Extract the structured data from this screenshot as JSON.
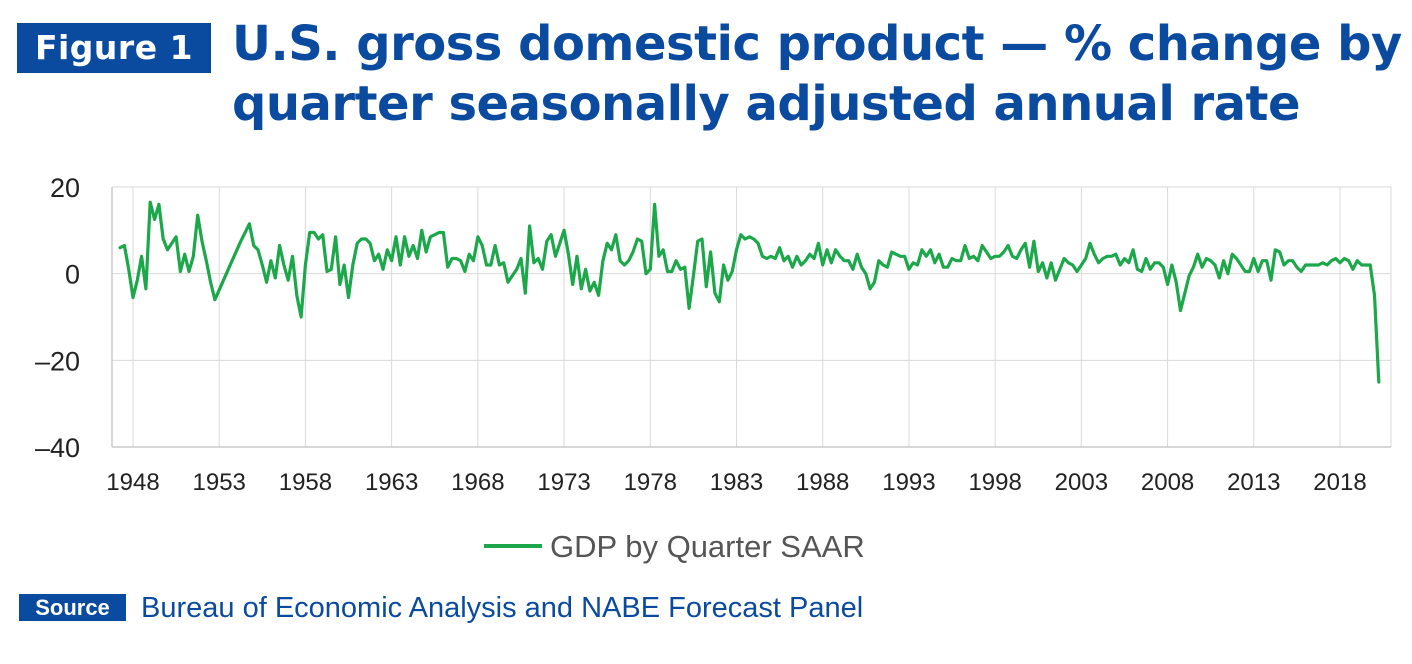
{
  "header": {
    "figure_label": "Figure 1",
    "title": "U.S. gross domestic product — % change by quarter seasonally adjusted annual rate"
  },
  "source": {
    "label": "Source",
    "text": "Bureau of Economic Analysis and NABE Forecast Panel"
  },
  "colors": {
    "brand_blue": "#0a4a9f",
    "series_green": "#1ca84a",
    "grid": "#d9d9d9"
  },
  "chart_data": {
    "type": "line",
    "title": "U.S. gross domestic product — % change by quarter seasonally adjusted annual rate",
    "xlabel": "",
    "ylabel": "",
    "ylim": [
      -40,
      20
    ],
    "yticks": [
      20,
      0,
      -20,
      -40
    ],
    "ytick_labels": [
      "20",
      "0",
      "–20",
      "–40"
    ],
    "xlim": [
      1947.25,
      2020.5
    ],
    "xticks": [
      1948,
      1953,
      1958,
      1963,
      1968,
      1973,
      1978,
      1983,
      1988,
      1993,
      1998,
      2003,
      2008,
      2013,
      2018
    ],
    "grid": {
      "horizontal": true,
      "vertical": true
    },
    "legend": {
      "position": "bottom"
    },
    "series": [
      {
        "name": "GDP by Quarter SAAR",
        "color": "#1ca84a",
        "points": [
          [
            1947.25,
            6.0
          ],
          [
            1947.5,
            6.5
          ],
          [
            1947.75,
            1.0
          ],
          [
            1948.0,
            -5.5
          ],
          [
            1948.25,
            -1.5
          ],
          [
            1948.5,
            4.0
          ],
          [
            1948.75,
            -3.5
          ],
          [
            1949.0,
            16.5
          ],
          [
            1949.25,
            12.5
          ],
          [
            1949.5,
            16.0
          ],
          [
            1949.75,
            8.0
          ],
          [
            1950.0,
            5.5
          ],
          [
            1950.25,
            7.0
          ],
          [
            1950.5,
            8.5
          ],
          [
            1950.75,
            0.5
          ],
          [
            1951.0,
            4.5
          ],
          [
            1951.25,
            0.5
          ],
          [
            1951.5,
            4.0
          ],
          [
            1951.75,
            13.5
          ],
          [
            1952.0,
            7.5
          ],
          [
            1952.25,
            3.0
          ],
          [
            1952.5,
            -2.0
          ],
          [
            1952.75,
            -6.0
          ],
          [
            1953.25,
            -1.5
          ],
          [
            1953.75,
            3.0
          ],
          [
            1954.25,
            7.5
          ],
          [
            1954.75,
            11.5
          ],
          [
            1955.0,
            6.5
          ],
          [
            1955.25,
            5.5
          ],
          [
            1955.5,
            2.0
          ],
          [
            1955.75,
            -2.0
          ],
          [
            1956.0,
            3.0
          ],
          [
            1956.25,
            -1.0
          ],
          [
            1956.5,
            6.5
          ],
          [
            1956.75,
            2.0
          ],
          [
            1957.0,
            -1.5
          ],
          [
            1957.25,
            4.0
          ],
          [
            1957.5,
            -5.0
          ],
          [
            1957.75,
            -10.0
          ],
          [
            1958.0,
            2.0
          ],
          [
            1958.25,
            9.5
          ],
          [
            1958.5,
            9.5
          ],
          [
            1958.75,
            8.0
          ],
          [
            1959.0,
            9.0
          ],
          [
            1959.25,
            0.5
          ],
          [
            1959.5,
            1.0
          ],
          [
            1959.75,
            8.5
          ],
          [
            1960.0,
            -2.5
          ],
          [
            1960.25,
            2.0
          ],
          [
            1960.5,
            -5.5
          ],
          [
            1960.75,
            2.0
          ],
          [
            1961.0,
            7.0
          ],
          [
            1961.25,
            8.0
          ],
          [
            1961.5,
            8.0
          ],
          [
            1961.75,
            7.0
          ],
          [
            1962.0,
            3.0
          ],
          [
            1962.25,
            4.5
          ],
          [
            1962.5,
            1.0
          ],
          [
            1962.75,
            5.5
          ],
          [
            1963.0,
            3.0
          ],
          [
            1963.25,
            8.5
          ],
          [
            1963.5,
            2.0
          ],
          [
            1963.75,
            8.5
          ],
          [
            1964.0,
            4.0
          ],
          [
            1964.25,
            6.5
          ],
          [
            1964.5,
            3.5
          ],
          [
            1964.75,
            10.0
          ],
          [
            1965.0,
            5.0
          ],
          [
            1965.25,
            8.5
          ],
          [
            1965.5,
            9.0
          ],
          [
            1965.75,
            9.5
          ],
          [
            1966.0,
            9.5
          ],
          [
            1966.25,
            1.5
          ],
          [
            1966.5,
            3.5
          ],
          [
            1966.75,
            3.5
          ],
          [
            1967.0,
            3.0
          ],
          [
            1967.25,
            0.5
          ],
          [
            1967.5,
            4.5
          ],
          [
            1967.75,
            3.0
          ],
          [
            1968.0,
            8.5
          ],
          [
            1968.25,
            6.5
          ],
          [
            1968.5,
            2.0
          ],
          [
            1968.75,
            2.0
          ],
          [
            1969.0,
            6.5
          ],
          [
            1969.25,
            2.0
          ],
          [
            1969.5,
            2.5
          ],
          [
            1969.75,
            -2.0
          ],
          [
            1970.0,
            -0.5
          ],
          [
            1970.25,
            1.0
          ],
          [
            1970.5,
            3.5
          ],
          [
            1970.75,
            -4.5
          ],
          [
            1971.0,
            11.0
          ],
          [
            1971.25,
            2.5
          ],
          [
            1971.5,
            3.5
          ],
          [
            1971.75,
            1.0
          ],
          [
            1972.0,
            7.5
          ],
          [
            1972.25,
            9.0
          ],
          [
            1972.5,
            4.0
          ],
          [
            1972.75,
            7.0
          ],
          [
            1973.0,
            10.0
          ],
          [
            1973.25,
            4.5
          ],
          [
            1973.5,
            -2.5
          ],
          [
            1973.75,
            4.0
          ],
          [
            1974.0,
            -3.5
          ],
          [
            1974.25,
            1.0
          ],
          [
            1974.5,
            -4.0
          ],
          [
            1974.75,
            -2.0
          ],
          [
            1975.0,
            -5.0
          ],
          [
            1975.25,
            3.0
          ],
          [
            1975.5,
            7.0
          ],
          [
            1975.75,
            5.5
          ],
          [
            1976.0,
            9.0
          ],
          [
            1976.25,
            3.0
          ],
          [
            1976.5,
            2.0
          ],
          [
            1976.75,
            3.0
          ],
          [
            1977.0,
            5.0
          ],
          [
            1977.25,
            8.0
          ],
          [
            1977.5,
            7.5
          ],
          [
            1977.75,
            0.0
          ],
          [
            1978.0,
            1.0
          ],
          [
            1978.25,
            16.0
          ],
          [
            1978.5,
            4.0
          ],
          [
            1978.75,
            5.5
          ],
          [
            1979.0,
            0.5
          ],
          [
            1979.25,
            0.5
          ],
          [
            1979.5,
            3.0
          ],
          [
            1979.75,
            1.0
          ],
          [
            1980.0,
            1.5
          ],
          [
            1980.25,
            -8.0
          ],
          [
            1980.5,
            -0.5
          ],
          [
            1980.75,
            7.5
          ],
          [
            1981.0,
            8.0
          ],
          [
            1981.25,
            -3.0
          ],
          [
            1981.5,
            5.0
          ],
          [
            1981.75,
            -4.5
          ],
          [
            1982.0,
            -6.5
          ],
          [
            1982.25,
            2.0
          ],
          [
            1982.5,
            -1.5
          ],
          [
            1982.75,
            0.5
          ],
          [
            1983.0,
            5.5
          ],
          [
            1983.25,
            9.0
          ],
          [
            1983.5,
            8.0
          ],
          [
            1983.75,
            8.5
          ],
          [
            1984.0,
            8.0
          ],
          [
            1984.25,
            7.0
          ],
          [
            1984.5,
            4.0
          ],
          [
            1984.75,
            3.5
          ],
          [
            1985.0,
            4.0
          ],
          [
            1985.25,
            3.5
          ],
          [
            1985.5,
            6.0
          ],
          [
            1985.75,
            3.0
          ],
          [
            1986.0,
            4.0
          ],
          [
            1986.25,
            1.5
          ],
          [
            1986.5,
            4.0
          ],
          [
            1986.75,
            2.0
          ],
          [
            1987.0,
            3.0
          ],
          [
            1987.25,
            4.5
          ],
          [
            1987.5,
            3.5
          ],
          [
            1987.75,
            7.0
          ],
          [
            1988.0,
            2.0
          ],
          [
            1988.25,
            5.5
          ],
          [
            1988.5,
            2.5
          ],
          [
            1988.75,
            5.5
          ],
          [
            1989.0,
            4.0
          ],
          [
            1989.25,
            3.0
          ],
          [
            1989.5,
            3.0
          ],
          [
            1989.75,
            1.0
          ],
          [
            1990.0,
            4.5
          ],
          [
            1990.25,
            1.5
          ],
          [
            1990.5,
            0.0
          ],
          [
            1990.75,
            -3.5
          ],
          [
            1991.0,
            -2.0
          ],
          [
            1991.25,
            3.0
          ],
          [
            1991.5,
            2.0
          ],
          [
            1991.75,
            1.5
          ],
          [
            1992.0,
            5.0
          ],
          [
            1992.25,
            4.5
          ],
          [
            1992.5,
            4.0
          ],
          [
            1992.75,
            4.0
          ],
          [
            1993.0,
            1.0
          ],
          [
            1993.25,
            2.5
          ],
          [
            1993.5,
            2.0
          ],
          [
            1993.75,
            5.5
          ],
          [
            1994.0,
            4.0
          ],
          [
            1994.25,
            5.5
          ],
          [
            1994.5,
            2.5
          ],
          [
            1994.75,
            4.5
          ],
          [
            1995.0,
            1.5
          ],
          [
            1995.25,
            1.5
          ],
          [
            1995.5,
            3.5
          ],
          [
            1995.75,
            3.0
          ],
          [
            1996.0,
            3.0
          ],
          [
            1996.25,
            6.5
          ],
          [
            1996.5,
            3.5
          ],
          [
            1996.75,
            4.0
          ],
          [
            1997.0,
            3.0
          ],
          [
            1997.25,
            6.5
          ],
          [
            1997.5,
            5.0
          ],
          [
            1997.75,
            3.5
          ],
          [
            1998.0,
            4.0
          ],
          [
            1998.25,
            4.0
          ],
          [
            1998.5,
            5.0
          ],
          [
            1998.75,
            6.5
          ],
          [
            1999.0,
            4.0
          ],
          [
            1999.25,
            3.5
          ],
          [
            1999.5,
            5.5
          ],
          [
            1999.75,
            7.0
          ],
          [
            2000.0,
            1.5
          ],
          [
            2000.25,
            7.5
          ],
          [
            2000.5,
            0.5
          ],
          [
            2000.75,
            2.5
          ],
          [
            2001.0,
            -1.0
          ],
          [
            2001.25,
            2.5
          ],
          [
            2001.5,
            -1.5
          ],
          [
            2001.75,
            1.0
          ],
          [
            2002.0,
            3.5
          ],
          [
            2002.25,
            2.5
          ],
          [
            2002.5,
            2.0
          ],
          [
            2002.75,
            0.5
          ],
          [
            2003.0,
            2.0
          ],
          [
            2003.25,
            3.5
          ],
          [
            2003.5,
            7.0
          ],
          [
            2003.75,
            4.5
          ],
          [
            2004.0,
            2.5
          ],
          [
            2004.25,
            3.5
          ],
          [
            2004.5,
            4.0
          ],
          [
            2004.75,
            4.0
          ],
          [
            2005.0,
            4.5
          ],
          [
            2005.25,
            2.0
          ],
          [
            2005.5,
            3.5
          ],
          [
            2005.75,
            2.5
          ],
          [
            2006.0,
            5.5
          ],
          [
            2006.25,
            1.0
          ],
          [
            2006.5,
            0.5
          ],
          [
            2006.75,
            3.5
          ],
          [
            2007.0,
            1.0
          ],
          [
            2007.25,
            2.5
          ],
          [
            2007.5,
            2.5
          ],
          [
            2007.75,
            1.5
          ],
          [
            2008.0,
            -2.5
          ],
          [
            2008.25,
            2.0
          ],
          [
            2008.5,
            -2.0
          ],
          [
            2008.75,
            -8.5
          ],
          [
            2009.0,
            -4.5
          ],
          [
            2009.25,
            -0.5
          ],
          [
            2009.5,
            1.5
          ],
          [
            2009.75,
            4.5
          ],
          [
            2010.0,
            1.5
          ],
          [
            2010.25,
            3.5
          ],
          [
            2010.5,
            3.0
          ],
          [
            2010.75,
            2.0
          ],
          [
            2011.0,
            -1.0
          ],
          [
            2011.25,
            3.0
          ],
          [
            2011.5,
            0.0
          ],
          [
            2011.75,
            4.5
          ],
          [
            2012.0,
            3.5
          ],
          [
            2012.25,
            2.0
          ],
          [
            2012.5,
            0.5
          ],
          [
            2012.75,
            0.5
          ],
          [
            2013.0,
            3.5
          ],
          [
            2013.25,
            0.5
          ],
          [
            2013.5,
            3.0
          ],
          [
            2013.75,
            3.0
          ],
          [
            2014.0,
            -1.5
          ],
          [
            2014.25,
            5.5
          ],
          [
            2014.5,
            5.0
          ],
          [
            2014.75,
            2.0
          ],
          [
            2015.0,
            3.0
          ],
          [
            2015.25,
            3.0
          ],
          [
            2015.5,
            1.5
          ],
          [
            2015.75,
            0.5
          ],
          [
            2016.0,
            2.0
          ],
          [
            2016.25,
            2.0
          ],
          [
            2016.5,
            2.0
          ],
          [
            2016.75,
            2.0
          ],
          [
            2017.0,
            2.5
          ],
          [
            2017.25,
            2.0
          ],
          [
            2017.5,
            3.0
          ],
          [
            2017.75,
            3.5
          ],
          [
            2018.0,
            2.5
          ],
          [
            2018.25,
            3.5
          ],
          [
            2018.5,
            3.0
          ],
          [
            2018.75,
            1.0
          ],
          [
            2019.0,
            3.0
          ],
          [
            2019.25,
            2.0
          ],
          [
            2019.5,
            2.0
          ],
          [
            2019.75,
            2.0
          ],
          [
            2020.0,
            -5.0
          ],
          [
            2020.25,
            -25.0
          ]
        ]
      }
    ]
  }
}
